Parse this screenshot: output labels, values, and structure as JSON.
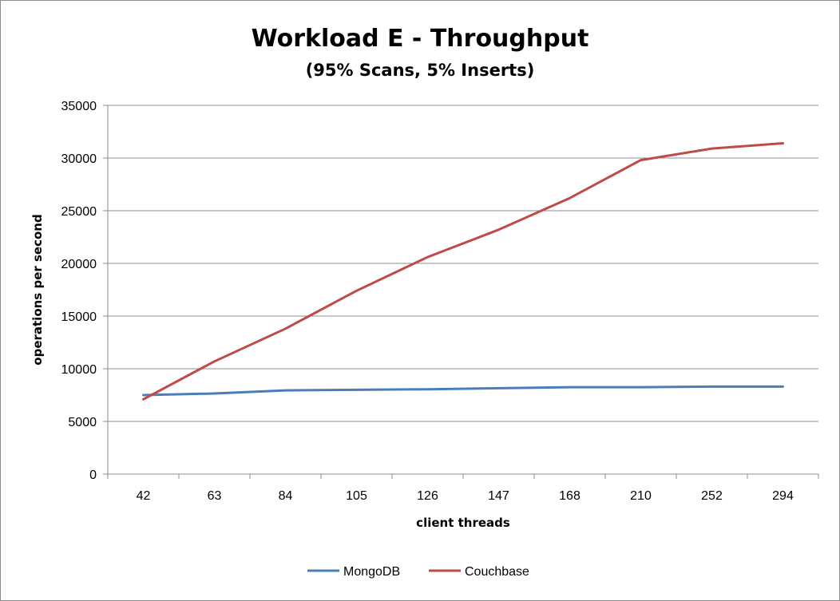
{
  "chart_data": {
    "type": "line",
    "title": "Workload E - Throughput",
    "subtitle": "(95% Scans, 5% Inserts)",
    "xlabel": "client threads",
    "ylabel": "operations per second",
    "categories": [
      "42",
      "63",
      "84",
      "105",
      "126",
      "147",
      "168",
      "210",
      "252",
      "294"
    ],
    "ylim": [
      0,
      35000
    ],
    "yticks": [
      0,
      5000,
      10000,
      15000,
      20000,
      25000,
      30000,
      35000
    ],
    "grid": true,
    "legend_position": "bottom",
    "series": [
      {
        "name": "MongoDB",
        "color": "#4a7ebb",
        "values": [
          7500,
          7650,
          7950,
          8000,
          8050,
          8150,
          8250,
          8250,
          8300,
          8300
        ]
      },
      {
        "name": "Couchbase",
        "color": "#be4b48",
        "values": [
          7100,
          10700,
          13800,
          17400,
          20600,
          23200,
          26200,
          29800,
          30900,
          31400
        ]
      }
    ]
  }
}
